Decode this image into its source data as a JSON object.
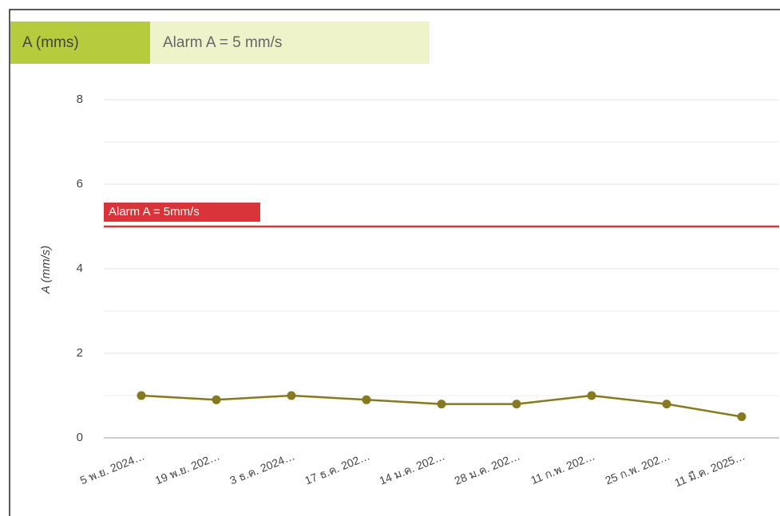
{
  "header": {
    "tab": "A (mms)",
    "info": "Alarm A = 5 mm/s"
  },
  "chart_data": {
    "type": "line",
    "y_label": "A (mm/s)",
    "categories": [
      "5 พ.ย. 2024…",
      "19 พ.ย. 202…",
      "3 ธ.ค. 2024…",
      "17 ธ.ค. 202…",
      "14 ม.ค. 202…",
      "28 ม.ค. 202…",
      "11 ก.พ. 202…",
      "25 ก.พ. 202…",
      "11 มี.ค. 2025…"
    ],
    "series": [
      {
        "name": "A",
        "color": "#857a1e",
        "values": [
          1.0,
          0.9,
          1.0,
          0.9,
          0.8,
          0.8,
          1.0,
          0.8,
          0.5
        ]
      }
    ],
    "ylim": [
      0,
      8
    ],
    "yticks": [
      0,
      2,
      4,
      6,
      8
    ],
    "minor_yticks": [
      1,
      3,
      5,
      7
    ],
    "grid": true,
    "threshold": {
      "value": 5,
      "label": "Alarm A = 5mm/s",
      "color": "#d9343a"
    }
  }
}
